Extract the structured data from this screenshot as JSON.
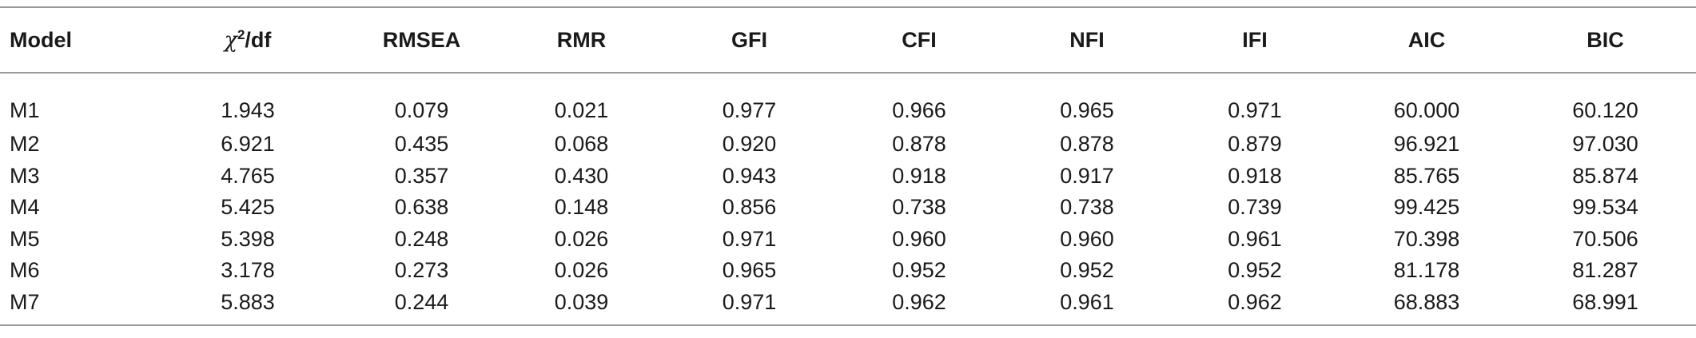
{
  "table": {
    "headers": {
      "model": "Model",
      "chi_symbol": "χ",
      "chi_sup": "2",
      "chi_rest": "/df",
      "rmsea": "RMSEA",
      "rmr": "RMR",
      "gfi": "GFI",
      "cfi": "CFI",
      "nfi": "NFI",
      "ifi": "IFI",
      "aic": "AIC",
      "bic": "BIC"
    },
    "rows": [
      {
        "model": "M1",
        "chi_df": "1.943",
        "rmsea": "0.079",
        "rmr": "0.021",
        "gfi": "0.977",
        "cfi": "0.966",
        "nfi": "0.965",
        "ifi": "0.971",
        "aic": "60.000",
        "bic": "60.120"
      },
      {
        "model": "M2",
        "chi_df": "6.921",
        "rmsea": "0.435",
        "rmr": "0.068",
        "gfi": "0.920",
        "cfi": "0.878",
        "nfi": "0.878",
        "ifi": "0.879",
        "aic": "96.921",
        "bic": "97.030"
      },
      {
        "model": "M3",
        "chi_df": "4.765",
        "rmsea": "0.357",
        "rmr": "0.430",
        "gfi": "0.943",
        "cfi": "0.918",
        "nfi": "0.917",
        "ifi": "0.918",
        "aic": "85.765",
        "bic": "85.874"
      },
      {
        "model": "M4",
        "chi_df": "5.425",
        "rmsea": "0.638",
        "rmr": "0.148",
        "gfi": "0.856",
        "cfi": "0.738",
        "nfi": "0.738",
        "ifi": "0.739",
        "aic": "99.425",
        "bic": "99.534"
      },
      {
        "model": "M5",
        "chi_df": "5.398",
        "rmsea": "0.248",
        "rmr": "0.026",
        "gfi": "0.971",
        "cfi": "0.960",
        "nfi": "0.960",
        "ifi": "0.961",
        "aic": "70.398",
        "bic": "70.506"
      },
      {
        "model": "M6",
        "chi_df": "3.178",
        "rmsea": "0.273",
        "rmr": "0.026",
        "gfi": "0.965",
        "cfi": "0.952",
        "nfi": "0.952",
        "ifi": "0.952",
        "aic": "81.178",
        "bic": "81.287"
      },
      {
        "model": "M7",
        "chi_df": "5.883",
        "rmsea": "0.244",
        "rmr": "0.039",
        "gfi": "0.971",
        "cfi": "0.962",
        "nfi": "0.961",
        "ifi": "0.962",
        "aic": "68.883",
        "bic": "68.991"
      }
    ]
  },
  "colors": {
    "rule": "#9a9a9a",
    "text": "#1a1a1a",
    "background": "#ffffff"
  }
}
